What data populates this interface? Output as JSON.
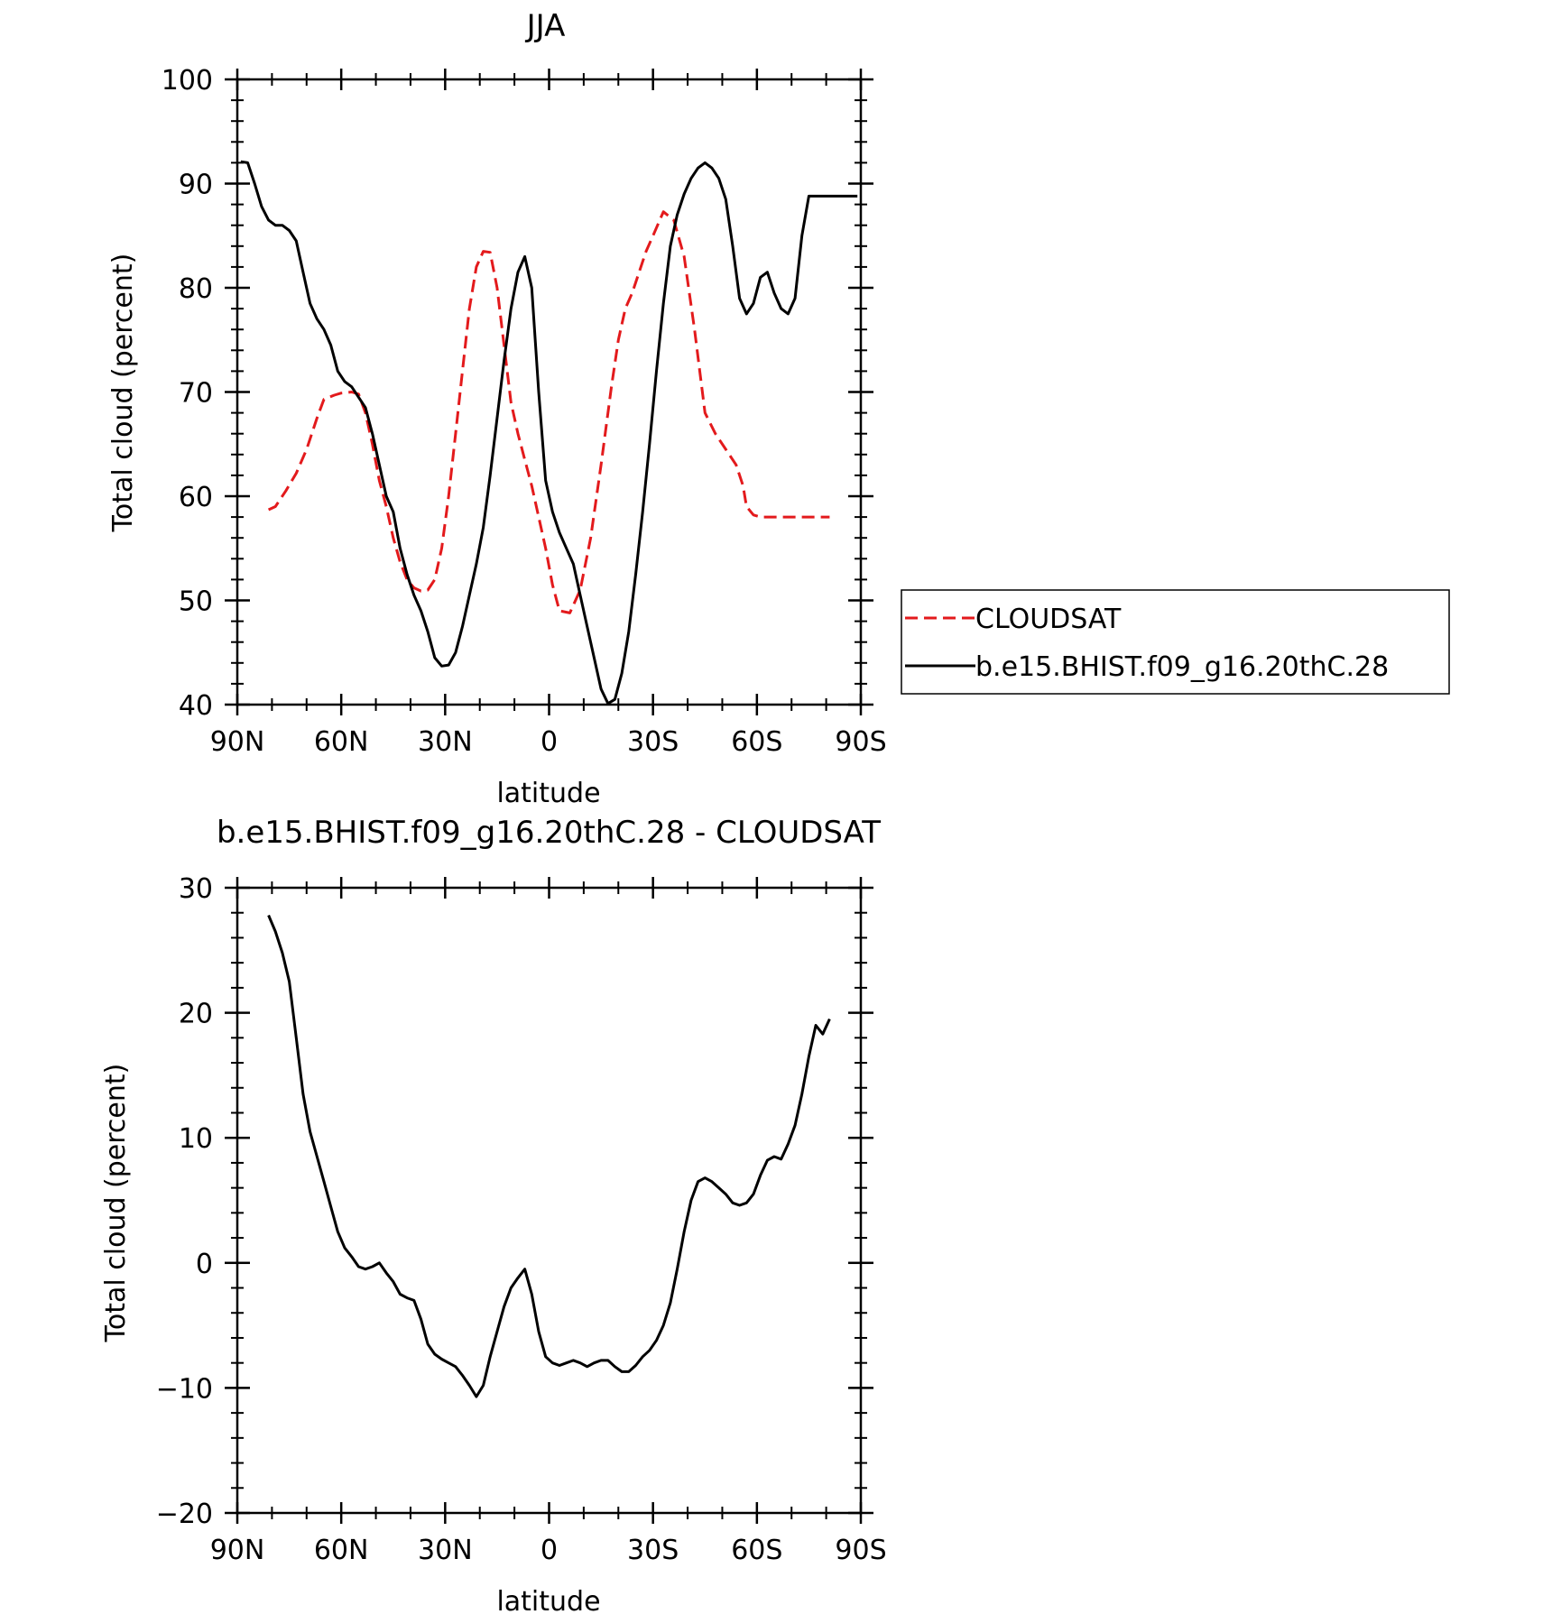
{
  "chart_data": [
    {
      "type": "line",
      "title": "JJA",
      "xlabel": "latitude",
      "ylabel": "Total cloud (percent)",
      "xlim": [
        90,
        -90
      ],
      "ylim": [
        40,
        100
      ],
      "x_ticks": [
        90,
        60,
        30,
        0,
        -30,
        -60,
        -90
      ],
      "x_tick_labels": [
        "90N",
        "60N",
        "30N",
        "0",
        "30S",
        "60S",
        "90S"
      ],
      "y_ticks": [
        40,
        50,
        60,
        70,
        80,
        90,
        100
      ],
      "y_tick_labels": [
        "40",
        "50",
        "60",
        "70",
        "80",
        "90",
        "100"
      ],
      "legend_position": "right",
      "series": [
        {
          "name": "CLOUDSAT",
          "color": "#e31a1c",
          "dash": "dashed",
          "x": [
            81,
            79,
            76,
            73,
            70,
            67,
            65,
            62,
            60,
            57,
            55,
            53,
            51,
            49,
            47,
            45,
            43,
            41,
            39,
            37,
            35,
            33,
            31,
            29,
            27,
            25,
            23,
            21,
            19,
            17,
            15,
            13,
            11,
            9,
            7,
            5,
            3,
            1,
            -1,
            -3,
            -6,
            -9,
            -12,
            -15,
            -18,
            -20,
            -22,
            -24,
            -26,
            -28,
            -30,
            -33,
            -36,
            -39,
            -42,
            -45,
            -48,
            -51,
            -54,
            -56,
            -57,
            -59,
            -61,
            -63,
            -65,
            -67,
            -69,
            -72,
            -75,
            -78,
            -81
          ],
          "y": [
            58.7,
            59.0,
            60.5,
            62.2,
            64.5,
            67.5,
            69.3,
            69.7,
            69.9,
            70.0,
            69.8,
            68.0,
            65.0,
            61.5,
            59.0,
            56.0,
            53.7,
            52.0,
            51.2,
            50.9,
            51.0,
            52.0,
            55.0,
            60.0,
            66.0,
            72.0,
            78.0,
            82.0,
            83.5,
            83.4,
            80.0,
            74.5,
            69.0,
            66.0,
            63.5,
            61.0,
            58.0,
            55.0,
            51.5,
            49.0,
            48.8,
            51.0,
            56.0,
            63.0,
            70.5,
            75.0,
            78.0,
            79.5,
            81.5,
            83.5,
            85.0,
            87.3,
            86.5,
            83.0,
            76.0,
            68.0,
            66.0,
            64.5,
            63.0,
            61.0,
            59.0,
            58.2,
            58.0,
            58.0,
            58.0,
            58.0,
            58.0,
            58.0,
            58.0,
            58.0,
            58.0
          ]
        },
        {
          "name": "b.e15.BHIST.f09_g16.20thC.28",
          "color": "#000000",
          "dash": "solid",
          "x": [
            89,
            87,
            85,
            83,
            81,
            79,
            77,
            75,
            73,
            71,
            69,
            67,
            65,
            63,
            61,
            59,
            57,
            55,
            53,
            51,
            49,
            47,
            45,
            43,
            41,
            39,
            37,
            35,
            33,
            31,
            29,
            27,
            25,
            23,
            21,
            19,
            17,
            15,
            13,
            11,
            9,
            7,
            5,
            3,
            1,
            -1,
            -3,
            -5,
            -7,
            -9,
            -11,
            -13,
            -15,
            -17,
            -19,
            -21,
            -23,
            -25,
            -27,
            -29,
            -31,
            -33,
            -35,
            -37,
            -39,
            -41,
            -43,
            -45,
            -47,
            -49,
            -51,
            -53,
            -55,
            -57,
            -59,
            -61,
            -63,
            -65,
            -67,
            -69,
            -71,
            -73,
            -75,
            -77,
            -79,
            -81,
            -83,
            -85,
            -87,
            -89
          ],
          "y": [
            92.1,
            92.0,
            90.0,
            87.8,
            86.5,
            86.0,
            86.0,
            85.5,
            84.5,
            81.5,
            78.5,
            77.0,
            76.0,
            74.5,
            72.0,
            71.0,
            70.5,
            69.5,
            68.5,
            66.0,
            63.0,
            60.0,
            58.5,
            55.0,
            52.5,
            50.5,
            49.0,
            47.0,
            44.5,
            43.7,
            43.8,
            45.0,
            47.5,
            50.5,
            53.5,
            57.0,
            62.0,
            67.5,
            73.0,
            78.0,
            81.5,
            83.0,
            80.0,
            70.0,
            61.5,
            58.5,
            56.5,
            55.0,
            53.5,
            50.5,
            47.5,
            44.5,
            41.5,
            40.1,
            40.5,
            43.0,
            47.0,
            52.5,
            58.5,
            65.0,
            72.0,
            78.5,
            84.0,
            87.0,
            89.0,
            90.5,
            91.5,
            92.0,
            91.5,
            90.5,
            88.5,
            84.0,
            79.0,
            77.5,
            78.5,
            81.0,
            81.5,
            79.5,
            78.0,
            77.5,
            79.0,
            85.0,
            88.8,
            88.8,
            88.8,
            88.8,
            88.8,
            88.8,
            88.8,
            88.8
          ]
        }
      ]
    },
    {
      "type": "line",
      "title": "b.e15.BHIST.f09_g16.20thC.28 - CLOUDSAT",
      "xlabel": "latitude",
      "ylabel": "Total cloud (percent)",
      "xlim": [
        90,
        -90
      ],
      "ylim": [
        -20,
        30
      ],
      "x_ticks": [
        90,
        60,
        30,
        0,
        -30,
        -60,
        -90
      ],
      "x_tick_labels": [
        "90N",
        "60N",
        "30N",
        "0",
        "30S",
        "60S",
        "90S"
      ],
      "y_ticks": [
        -20,
        -10,
        0,
        10,
        20,
        30
      ],
      "y_tick_labels": [
        "−20",
        "−10",
        "0",
        "10",
        "20",
        "30"
      ],
      "series": [
        {
          "color": "#000000",
          "dash": "solid",
          "x": [
            81,
            79,
            77,
            75,
            73,
            71,
            69,
            67,
            65,
            63,
            61,
            59,
            57,
            55,
            53,
            51,
            49,
            47,
            45,
            43,
            41,
            39,
            37,
            35,
            33,
            31,
            29,
            27,
            25,
            23,
            21,
            19,
            17,
            15,
            13,
            11,
            9,
            7,
            5,
            3,
            1,
            -1,
            -3,
            -5,
            -7,
            -9,
            -11,
            -13,
            -15,
            -17,
            -19,
            -21,
            -23,
            -25,
            -27,
            -29,
            -31,
            -33,
            -35,
            -37,
            -39,
            -41,
            -43,
            -45,
            -47,
            -49,
            -51,
            -53,
            -55,
            -57,
            -59,
            -61,
            -63,
            -65,
            -67,
            -69,
            -71,
            -73,
            -75,
            -77,
            -79,
            -81
          ],
          "y": [
            27.8,
            26.5,
            24.8,
            22.5,
            18.0,
            13.5,
            10.5,
            8.5,
            6.5,
            4.5,
            2.5,
            1.2,
            0.5,
            -0.3,
            -0.5,
            -0.3,
            0.0,
            -0.8,
            -1.5,
            -2.5,
            -2.8,
            -3.0,
            -4.5,
            -6.5,
            -7.3,
            -7.7,
            -8.0,
            -8.3,
            -9.0,
            -9.8,
            -10.7,
            -9.8,
            -7.5,
            -5.5,
            -3.5,
            -2.0,
            -1.2,
            -0.5,
            -2.5,
            -5.5,
            -7.5,
            -8.0,
            -8.2,
            -8.0,
            -7.8,
            -8.0,
            -8.3,
            -8.0,
            -7.8,
            -7.8,
            -8.3,
            -8.7,
            -8.7,
            -8.2,
            -7.5,
            -7.0,
            -6.2,
            -5.0,
            -3.2,
            -0.5,
            2.5,
            5.0,
            6.5,
            6.8,
            6.5,
            6.0,
            5.5,
            4.8,
            4.6,
            4.8,
            5.5,
            7.0,
            8.2,
            8.5,
            8.3,
            9.5,
            11.0,
            13.5,
            16.5,
            19.0,
            18.3,
            19.5
          ]
        }
      ]
    }
  ]
}
